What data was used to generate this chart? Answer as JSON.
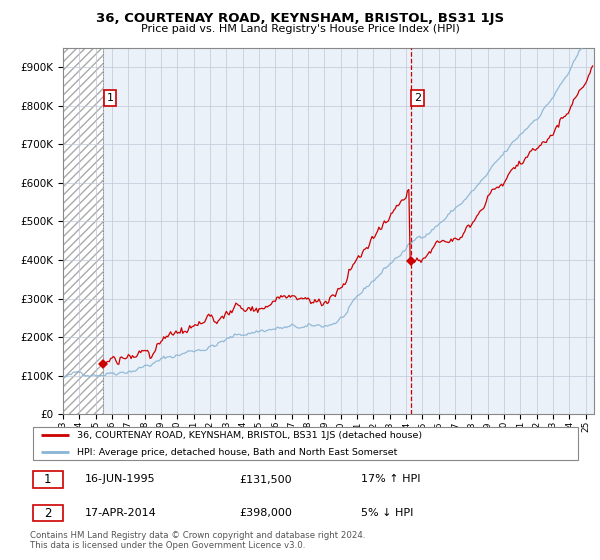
{
  "title": "36, COURTENAY ROAD, KEYNSHAM, BRISTOL, BS31 1JS",
  "subtitle": "Price paid vs. HM Land Registry's House Price Index (HPI)",
  "legend_line1": "36, COURTENAY ROAD, KEYNSHAM, BRISTOL, BS31 1JS (detached house)",
  "legend_line2": "HPI: Average price, detached house, Bath and North East Somerset",
  "transaction1_date": "16-JUN-1995",
  "transaction1_price": "£131,500",
  "transaction1_hpi": "17% ↑ HPI",
  "transaction2_date": "17-APR-2014",
  "transaction2_price": "£398,000",
  "transaction2_hpi": "5% ↓ HPI",
  "footer": "Contains HM Land Registry data © Crown copyright and database right 2024.\nThis data is licensed under the Open Government Licence v3.0.",
  "hpi_color": "#8ab4d4",
  "price_color": "#cc0000",
  "dashed_line_color": "#cc0000",
  "ylim": [
    0,
    950000
  ],
  "yticks": [
    0,
    100000,
    200000,
    300000,
    400000,
    500000,
    600000,
    700000,
    800000,
    900000
  ],
  "transaction1_x": 1995.46,
  "transaction1_y": 131500,
  "transaction2_x": 2014.29,
  "transaction2_y": 398000,
  "xmin": 1993,
  "xmax": 2025.5
}
